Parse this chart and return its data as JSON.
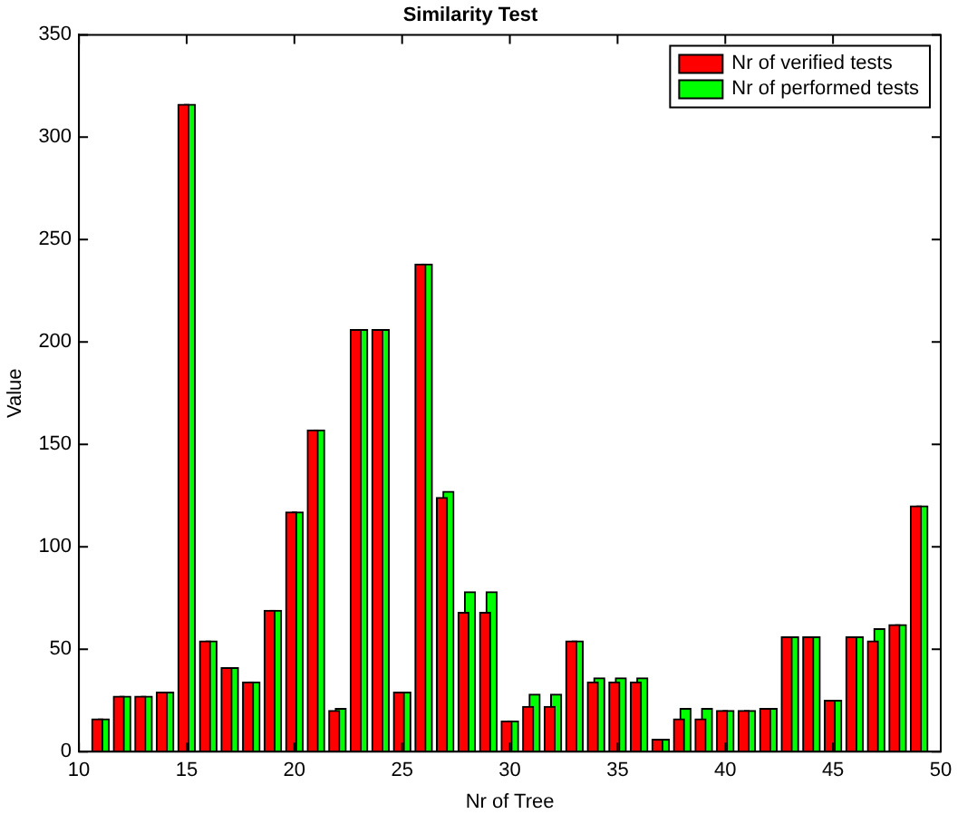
{
  "chart_data": {
    "type": "bar",
    "title": "Similarity Test",
    "xlabel": "Nr of Tree",
    "ylabel": "Value",
    "x": [
      11,
      12,
      13,
      14,
      15,
      16,
      17,
      18,
      19,
      20,
      21,
      22,
      23,
      24,
      25,
      26,
      27,
      28,
      29,
      30,
      31,
      32,
      33,
      34,
      35,
      36,
      37,
      38,
      39,
      40,
      41,
      42,
      43,
      44,
      45,
      46,
      47,
      48,
      49
    ],
    "series": [
      {
        "name": "Nr of verified tests",
        "color": "#ff0000",
        "values": [
          16,
          27,
          27,
          29,
          316,
          54,
          41,
          34,
          69,
          117,
          157,
          20,
          206,
          206,
          29,
          238,
          124,
          68,
          68,
          15,
          22,
          22,
          54,
          34,
          34,
          34,
          6,
          16,
          16,
          20,
          20,
          21,
          56,
          56,
          25,
          56,
          54,
          62,
          120
        ]
      },
      {
        "name": "Nr of performed tests",
        "color": "#00ff00",
        "values": [
          16,
          27,
          27,
          29,
          316,
          54,
          41,
          34,
          69,
          117,
          157,
          21,
          206,
          206,
          29,
          238,
          127,
          78,
          78,
          15,
          28,
          28,
          54,
          36,
          36,
          36,
          6,
          21,
          21,
          20,
          20,
          21,
          56,
          56,
          25,
          56,
          60,
          62,
          120
        ]
      }
    ],
    "xlim": [
      10,
      50
    ],
    "xticks": [
      10,
      15,
      20,
      25,
      30,
      35,
      40,
      45,
      50
    ],
    "ylim": [
      0,
      350
    ],
    "yticks": [
      0,
      50,
      100,
      150,
      200,
      250,
      300,
      350
    ],
    "grid": false,
    "legend": "top right"
  }
}
